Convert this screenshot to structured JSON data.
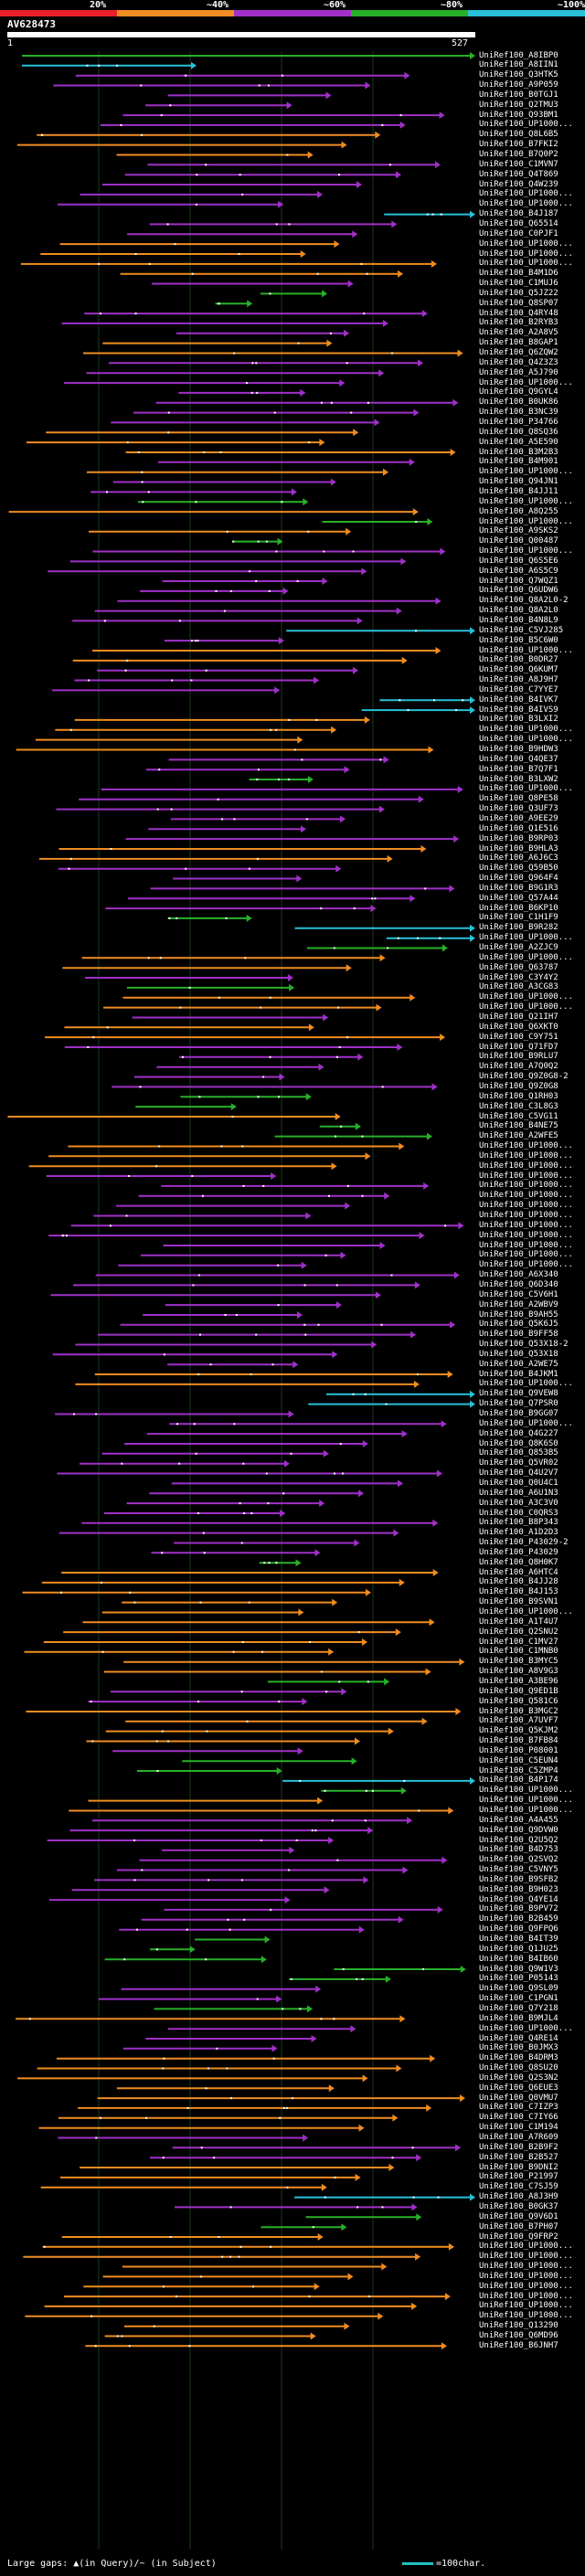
{
  "legend": {
    "segments": [
      {
        "label": "20%",
        "color": "#e8202a"
      },
      {
        "label": "~40%",
        "color": "#f08c20"
      },
      {
        "label": "~60%",
        "color": "#a030c8"
      },
      {
        "label": "~80%",
        "color": "#28b028"
      },
      {
        "label": "~100%",
        "color": "#28c0d8"
      }
    ]
  },
  "query": {
    "id": "AV628473",
    "start": "1",
    "end": "527"
  },
  "footer": {
    "text": "Large gaps: ▲(in Query)/~ (in Subject)",
    "scale_text": "=100char."
  },
  "hit_colors": {
    "1": "#28b028",
    "2": "#28c0d8",
    "3": "#f08c20",
    "4": "#a030c8"
  },
  "hits": [
    {
      "label": "UniRef100_A8IBP0",
      "c": 1
    },
    {
      "label": "UniRef100_A8IIN1",
      "c": 2
    },
    {
      "label": "UniRef100_Q3HTK5",
      "c": 4
    },
    {
      "label": "UniRef100_A9P059",
      "c": 4
    },
    {
      "label": "UniRef100_B0TGJ1",
      "c": 4
    },
    {
      "label": "UniRef100_Q2TMU3",
      "c": 4
    },
    {
      "label": "UniRef100_Q93BM1",
      "c": 4
    },
    {
      "label": "UniRef100_UP1000...",
      "c": 4
    },
    {
      "label": "UniRef100_Q8L6B5",
      "c": 3
    },
    {
      "label": "UniRef100_B7FKI2",
      "c": 3
    },
    {
      "label": "UniRef100_B7Q0P2",
      "c": 3
    },
    {
      "label": "UniRef100_C1MVN7",
      "c": 4
    },
    {
      "label": "UniRef100_Q4T869",
      "c": 4
    },
    {
      "label": "UniRef100_Q4W239",
      "c": 4
    },
    {
      "label": "UniRef100_UP1000...",
      "c": 4
    },
    {
      "label": "UniRef100_UP1000...",
      "c": 4
    },
    {
      "label": "UniRef100_B4J187",
      "c": 2
    },
    {
      "label": "UniRef100_Q65514",
      "c": 4
    },
    {
      "label": "UniRef100_C0PJF1",
      "c": 4
    },
    {
      "label": "UniRef100_UP1000...",
      "c": 3
    },
    {
      "label": "UniRef100_UP1000...",
      "c": 3
    },
    {
      "label": "UniRef100_UP1000...",
      "c": 3
    },
    {
      "label": "UniRef100_B4M1D6",
      "c": 3
    },
    {
      "label": "UniRef100_C1MUJ6",
      "c": 4
    },
    {
      "label": "UniRef100_Q5JZ22",
      "c": 1
    },
    {
      "label": "UniRef100_Q8SP07",
      "c": 1
    },
    {
      "label": "UniRef100_Q4RY48",
      "c": 4
    },
    {
      "label": "UniRef100_B2RYB3",
      "c": 4
    },
    {
      "label": "UniRef100_A2A8V5",
      "c": 4
    },
    {
      "label": "UniRef100_B8GAP1",
      "c": 3
    },
    {
      "label": "UniRef100_Q6ZQW2",
      "c": 3
    },
    {
      "label": "UniRef100_Q4Z3Z3",
      "c": 4
    },
    {
      "label": "UniRef100_A5J790",
      "c": 4
    },
    {
      "label": "UniRef100_UP1000...",
      "c": 4
    },
    {
      "label": "UniRef100_Q9GYL4",
      "c": 4
    },
    {
      "label": "UniRef100_B0UK86",
      "c": 4
    },
    {
      "label": "UniRef100_B3NC39",
      "c": 4
    },
    {
      "label": "UniRef100_P34766",
      "c": 4
    },
    {
      "label": "UniRef100_Q8SQ36",
      "c": 3
    },
    {
      "label": "UniRef100_A5E590",
      "c": 3
    },
    {
      "label": "UniRef100_B3M2B3",
      "c": 3
    },
    {
      "label": "UniRef100_B4M901",
      "c": 4
    },
    {
      "label": "UniRef100_UP1000...",
      "c": 3
    },
    {
      "label": "UniRef100_Q94JN1",
      "c": 4
    },
    {
      "label": "UniRef100_B4JJ11",
      "c": 4
    },
    {
      "label": "UniRef100_UP1000...",
      "c": 1
    },
    {
      "label": "UniRef100_A8Q255",
      "c": 3
    },
    {
      "label": "UniRef100_UP1000...",
      "c": 1
    },
    {
      "label": "UniRef100_A9SKS2",
      "c": 3
    },
    {
      "label": "UniRef100_Q00487",
      "c": 1
    },
    {
      "label": "UniRef100_UP1000...",
      "c": 4
    },
    {
      "label": "UniRef100_Q6S5E6",
      "c": 4
    },
    {
      "label": "UniRef100_A6S5C9",
      "c": 4
    },
    {
      "label": "UniRef100_Q7WQZ1",
      "c": 4
    },
    {
      "label": "UniRef100_Q6UDW6",
      "c": 4
    },
    {
      "label": "UniRef100_Q8A2L0-2",
      "c": 4
    },
    {
      "label": "UniRef100_Q8A2L0",
      "c": 4
    },
    {
      "label": "UniRef100_B4N8L9",
      "c": 4
    },
    {
      "label": "UniRef100_C5VJ285",
      "c": 2
    },
    {
      "label": "UniRef100_B5C6W0",
      "c": 4
    },
    {
      "label": "UniRef100_UP1000...",
      "c": 3
    },
    {
      "label": "UniRef100_B0DR27",
      "c": 3
    },
    {
      "label": "UniRef100_Q6KUM7",
      "c": 4
    },
    {
      "label": "UniRef100_A8J9H7",
      "c": 4
    },
    {
      "label": "UniRef100_C7YYE7",
      "c": 4
    },
    {
      "label": "UniRef100_B4IVK7",
      "c": 2
    },
    {
      "label": "UniRef100_B4IVS9",
      "c": 2
    },
    {
      "label": "UniRef100_B3LXI2",
      "c": 3
    },
    {
      "label": "UniRef100_UP1000...",
      "c": 3
    },
    {
      "label": "UniRef100_UP1000...",
      "c": 3
    },
    {
      "label": "UniRef100_B9HDW3",
      "c": 3
    },
    {
      "label": "UniRef100_Q4QE37",
      "c": 4
    },
    {
      "label": "UniRef100_B7Q7F1",
      "c": 4
    },
    {
      "label": "UniRef100_B3LXW2",
      "c": 1
    },
    {
      "label": "UniRef100_UP1000...",
      "c": 4
    },
    {
      "label": "UniRef100_Q8PE58",
      "c": 4
    },
    {
      "label": "UniRef100_Q3UF73",
      "c": 4
    },
    {
      "label": "UniRef100_A9EE29",
      "c": 4
    },
    {
      "label": "UniRef100_Q1E516",
      "c": 4
    },
    {
      "label": "UniRef100_B9RP03",
      "c": 4
    },
    {
      "label": "UniRef100_B9HLA3",
      "c": 3
    },
    {
      "label": "UniRef100_A6J6C3",
      "c": 3
    },
    {
      "label": "UniRef100_Q59B50",
      "c": 4
    },
    {
      "label": "UniRef100_Q964F4",
      "c": 4
    },
    {
      "label": "UniRef100_B9G1R3",
      "c": 4
    },
    {
      "label": "UniRef100_Q57A44",
      "c": 4
    },
    {
      "label": "UniRef100_B6KP10",
      "c": 4
    },
    {
      "label": "UniRef100_C1H1F9",
      "c": 1
    },
    {
      "label": "UniRef100_B9R282",
      "c": 2
    },
    {
      "label": "UniRef100_UP1000...",
      "c": 2
    },
    {
      "label": "UniRef100_A2ZJC9",
      "c": 1
    },
    {
      "label": "UniRef100_UP1000...",
      "c": 3
    },
    {
      "label": "UniRef100_Q63787",
      "c": 3
    },
    {
      "label": "UniRef100_C3Y4Y2",
      "c": 4
    },
    {
      "label": "UniRef100_A3CG83",
      "c": 1
    },
    {
      "label": "UniRef100_UP1000...",
      "c": 3
    },
    {
      "label": "UniRef100_UP1000...",
      "c": 3
    },
    {
      "label": "UniRef100_Q21IH7",
      "c": 4
    },
    {
      "label": "UniRef100_Q6XKT0",
      "c": 3
    },
    {
      "label": "UniRef100_C9Y751",
      "c": 3
    },
    {
      "label": "UniRef100_Q71FD7",
      "c": 4
    },
    {
      "label": "UniRef100_B9RLU7",
      "c": 4
    },
    {
      "label": "UniRef100_A7Q0Q2",
      "c": 4
    },
    {
      "label": "UniRef100_Q9Z0G8-2",
      "c": 4
    },
    {
      "label": "UniRef100_Q9Z0G8",
      "c": 4
    },
    {
      "label": "UniRef100_Q1RH03",
      "c": 1
    },
    {
      "label": "UniRef100_C3L8G3",
      "c": 1
    },
    {
      "label": "UniRef100_C5VG11",
      "c": 3
    },
    {
      "label": "UniRef100_B4NE75",
      "c": 1
    },
    {
      "label": "UniRef100_A2WFE5",
      "c": 1
    },
    {
      "label": "UniRef100_UP1000...",
      "c": 3
    },
    {
      "label": "UniRef100_UP1000...",
      "c": 3
    },
    {
      "label": "UniRef100_UP1000...",
      "c": 3
    },
    {
      "label": "UniRef100_UP1000...",
      "c": 4
    },
    {
      "label": "UniRef100_UP1000...",
      "c": 4
    },
    {
      "label": "UniRef100_UP1000...",
      "c": 4
    },
    {
      "label": "UniRef100_UP1000...",
      "c": 4
    },
    {
      "label": "UniRef100_UP1000...",
      "c": 4
    },
    {
      "label": "UniRef100_UP1000...",
      "c": 4
    },
    {
      "label": "UniRef100_UP1000...",
      "c": 4
    },
    {
      "label": "UniRef100_UP1000...",
      "c": 4
    },
    {
      "label": "UniRef100_UP1000...",
      "c": 4
    },
    {
      "label": "UniRef100_UP1000...",
      "c": 4
    },
    {
      "label": "UniRef100_A6X340",
      "c": 4
    },
    {
      "label": "UniRef100_Q6D340",
      "c": 4
    },
    {
      "label": "UniRef100_C5V6H1",
      "c": 4
    },
    {
      "label": "UniRef100_A2WBV9",
      "c": 4
    },
    {
      "label": "UniRef100_B9AH55",
      "c": 4
    },
    {
      "label": "UniRef100_Q5K6J5",
      "c": 4
    },
    {
      "label": "UniRef100_B9FF58",
      "c": 4
    },
    {
      "label": "UniRef100_Q53X18-2",
      "c": 4
    },
    {
      "label": "UniRef100_Q53X18",
      "c": 4
    },
    {
      "label": "UniRef100_A2WE75",
      "c": 4
    },
    {
      "label": "UniRef100_B4JKM1",
      "c": 3
    },
    {
      "label": "UniRef100_UP1000...",
      "c": 3
    },
    {
      "label": "UniRef100_Q9VEW8",
      "c": 2
    },
    {
      "label": "UniRef100_Q7PSR0",
      "c": 2
    },
    {
      "label": "UniRef100_B9GG07",
      "c": 4
    },
    {
      "label": "UniRef100_UP1000...",
      "c": 4
    },
    {
      "label": "UniRef100_Q4G227",
      "c": 4
    },
    {
      "label": "UniRef100_Q8K6S0",
      "c": 4
    },
    {
      "label": "UniRef100_Q853B5",
      "c": 4
    },
    {
      "label": "UniRef100_Q5VR02",
      "c": 4
    },
    {
      "label": "UniRef100_Q4U2V7",
      "c": 4
    },
    {
      "label": "UniRef100_Q0U4C1",
      "c": 4
    },
    {
      "label": "UniRef100_A6U1N3",
      "c": 4
    },
    {
      "label": "UniRef100_A3C3V0",
      "c": 4
    },
    {
      "label": "UniRef100_C0QRS3",
      "c": 4
    },
    {
      "label": "UniRef100_B8P343",
      "c": 4
    },
    {
      "label": "UniRef100_A1D2D3",
      "c": 4
    },
    {
      "label": "UniRef100_P43029-2",
      "c": 4
    },
    {
      "label": "UniRef100_P43029",
      "c": 4
    },
    {
      "label": "UniRef100_Q8H0K7",
      "c": 1
    },
    {
      "label": "UniRef100_A6HTC4",
      "c": 3
    },
    {
      "label": "UniRef100_B4JJ28",
      "c": 3
    },
    {
      "label": "UniRef100_B4J153",
      "c": 3
    },
    {
      "label": "UniRef100_B9SVN1",
      "c": 3
    },
    {
      "label": "UniRef100_UP1000...",
      "c": 3
    },
    {
      "label": "UniRef100_A1T4U7",
      "c": 3
    },
    {
      "label": "UniRef100_Q2SNU2",
      "c": 3
    },
    {
      "label": "UniRef100_C1MV27",
      "c": 3
    },
    {
      "label": "UniRef100_C1MNB0",
      "c": 3
    },
    {
      "label": "UniRef100_B3MYC5",
      "c": 3
    },
    {
      "label": "UniRef100_A8V9G3",
      "c": 3
    },
    {
      "label": "UniRef100_A3BE96",
      "c": 1
    },
    {
      "label": "UniRef100_Q9ED1B",
      "c": 4
    },
    {
      "label": "UniRef100_Q581C6",
      "c": 4
    },
    {
      "label": "UniRef100_B3MGC2",
      "c": 3
    },
    {
      "label": "UniRef100_A7UVF7",
      "c": 3
    },
    {
      "label": "UniRef100_Q5KJM2",
      "c": 3
    },
    {
      "label": "UniRef100_B7FB84",
      "c": 3
    },
    {
      "label": "UniRef100_P08001",
      "c": 4
    },
    {
      "label": "UniRef100_C5EUN4",
      "c": 1
    },
    {
      "label": "UniRef100_C5ZMP4",
      "c": 1
    },
    {
      "label": "UniRef100_B4P174",
      "c": 2
    },
    {
      "label": "UniRef100_UP1000...",
      "c": 1
    },
    {
      "label": "UniRef100_UP1000...",
      "c": 3
    },
    {
      "label": "UniRef100_UP1000...",
      "c": 3
    },
    {
      "label": "UniRef100_A4A455",
      "c": 4
    },
    {
      "label": "UniRef100_Q9DVW0",
      "c": 4
    },
    {
      "label": "UniRef100_Q2U5Q2",
      "c": 4
    },
    {
      "label": "UniRef100_B4D753",
      "c": 4
    },
    {
      "label": "UniRef100_Q2SVQ2",
      "c": 4
    },
    {
      "label": "UniRef100_C5VNY5",
      "c": 4
    },
    {
      "label": "UniRef100_B9SFB2",
      "c": 4
    },
    {
      "label": "UniRef100_B9H023",
      "c": 4
    },
    {
      "label": "UniRef100_Q4YE14",
      "c": 4
    },
    {
      "label": "UniRef100_B9PV72",
      "c": 4
    },
    {
      "label": "UniRef100_B2B459",
      "c": 4
    },
    {
      "label": "UniRef100_Q9FPQ6",
      "c": 4
    },
    {
      "label": "UniRef100_B4IT39",
      "c": 1
    },
    {
      "label": "UniRef100_Q1JU25",
      "c": 1
    },
    {
      "label": "UniRef100_B4IB60",
      "c": 1
    },
    {
      "label": "UniRef100_Q9W1V3",
      "c": 1
    },
    {
      "label": "UniRef100_P05143",
      "c": 1
    },
    {
      "label": "UniRef100_Q9SL09",
      "c": 4
    },
    {
      "label": "UniRef100_C1PGN1",
      "c": 4
    },
    {
      "label": "UniRef100_Q7Y218",
      "c": 1
    },
    {
      "label": "UniRef100_B9MJL4",
      "c": 3
    },
    {
      "label": "UniRef100_UP1000...",
      "c": 4
    },
    {
      "label": "UniRef100_Q4RE14",
      "c": 4
    },
    {
      "label": "UniRef100_B0JMX3",
      "c": 4
    },
    {
      "label": "UniRef100_B4DRM3",
      "c": 3
    },
    {
      "label": "UniRef100_Q8SU20",
      "c": 3
    },
    {
      "label": "UniRef100_Q2S3N2",
      "c": 3
    },
    {
      "label": "UniRef100_Q6EUE3",
      "c": 3
    },
    {
      "label": "UniRef100_Q0VMU7",
      "c": 3
    },
    {
      "label": "UniRef100_C7IZP3",
      "c": 3
    },
    {
      "label": "UniRef100_C7IY66",
      "c": 3
    },
    {
      "label": "UniRef100_C1M194",
      "c": 3
    },
    {
      "label": "UniRef100_A7R609",
      "c": 4
    },
    {
      "label": "UniRef100_B2B9F2",
      "c": 4
    },
    {
      "label": "UniRef100_B2B527",
      "c": 4
    },
    {
      "label": "UniRef100_B9DNI2",
      "c": 3
    },
    {
      "label": "UniRef100_P21997",
      "c": 3
    },
    {
      "label": "UniRef100_C7SJ59",
      "c": 3
    },
    {
      "label": "UniRef100_A8J3H9",
      "c": 2
    },
    {
      "label": "UniRef100_B0GK37",
      "c": 4
    },
    {
      "label": "UniRef100_Q9V6D1",
      "c": 1
    },
    {
      "label": "UniRef100_B7PH07",
      "c": 1
    },
    {
      "label": "UniRef100_Q9FRP2",
      "c": 3
    },
    {
      "label": "UniRef100_UP1000...",
      "c": 3
    },
    {
      "label": "UniRef100_UP1000...",
      "c": 3
    },
    {
      "label": "UniRef100_UP1000...",
      "c": 3
    },
    {
      "label": "UniRef100_UP1000...",
      "c": 3
    },
    {
      "label": "UniRef100_UP1000...",
      "c": 3
    },
    {
      "label": "UniRef100_UP1000...",
      "c": 3
    },
    {
      "label": "UniRef100_UP1000...",
      "c": 3
    },
    {
      "label": "UniRef100_UP1000...",
      "c": 3
    },
    {
      "label": "UniRef100_Q13290",
      "c": 3
    },
    {
      "label": "UniRef100_Q6MD96",
      "c": 3
    },
    {
      "label": "UniRef100_B6JNH7",
      "c": 3
    }
  ]
}
